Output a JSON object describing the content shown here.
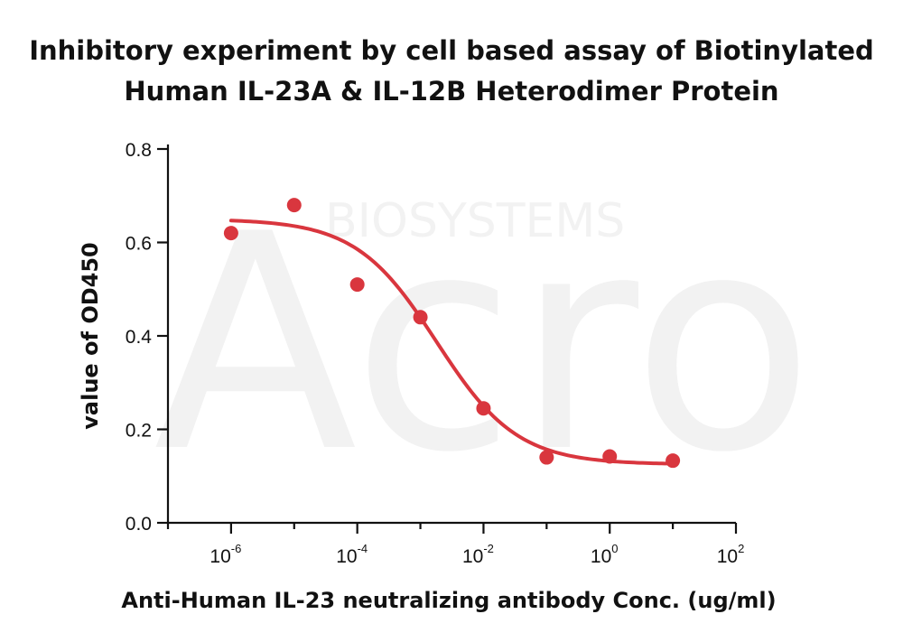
{
  "chart_data": {
    "type": "scatter",
    "title_lines": [
      "Inhibitory experiment by cell based assay of Biotinylated",
      "Human IL-23A & IL-12B Heterodimer Protein"
    ],
    "xlabel": "Anti-Human IL-23 neutralizing antibody Conc. (ug/ml)",
    "ylabel": "value of OD450",
    "x_scale": "log10",
    "xlim": [
      1e-07,
      100
    ],
    "ylim": [
      0,
      0.8
    ],
    "x_ticks": [
      {
        "base": "10",
        "exp": "-6"
      },
      {
        "base": "10",
        "exp": "-4"
      },
      {
        "base": "10",
        "exp": "-2"
      },
      {
        "base": "10",
        "exp": "0"
      },
      {
        "base": "10",
        "exp": "2"
      }
    ],
    "y_ticks": [
      "0.0",
      "0.2",
      "0.4",
      "0.6",
      "0.8"
    ],
    "grid": false,
    "legend": "none",
    "point_color": "#d9363e",
    "curve_color": "#d9363e",
    "series": [
      {
        "x": [
          1e-06,
          1e-05,
          0.0001,
          0.001,
          0.01,
          0.1,
          1,
          10
        ],
        "y": [
          0.62,
          0.68,
          0.51,
          0.44,
          0.245,
          0.14,
          0.142,
          0.133
        ]
      }
    ],
    "fit_curve": {
      "model": "4PL",
      "top": 0.65,
      "bottom": 0.125,
      "ec50": 0.0018,
      "hill": 0.68,
      "x_range": [
        1e-06,
        10
      ]
    },
    "watermark": {
      "main": "Acro",
      "sub": "BIOSYSTEMS"
    }
  }
}
